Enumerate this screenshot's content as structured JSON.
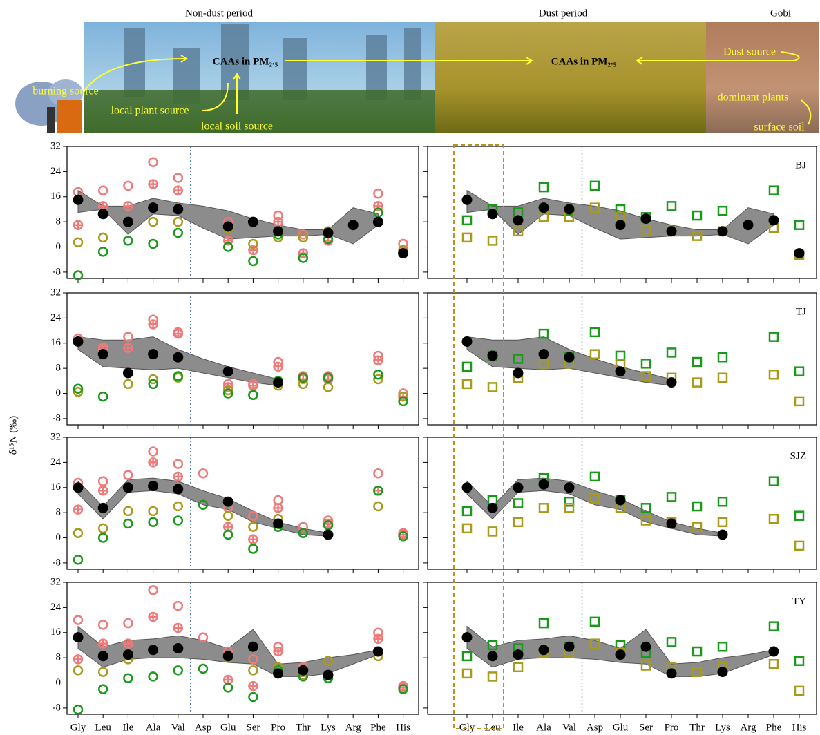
{
  "banner": {
    "left_title": "Non-dust period",
    "middle_title": "Dust period",
    "right_title": "Gobi",
    "caa_left": "CAAs in PM₂.₅",
    "caa_right": "CAAs in PM₂.₅",
    "burning": "burning source",
    "local_plant": "local plant source",
    "local_soil": "local soil source",
    "dust_source": "Dust source",
    "dominant_plants": "dominant plants",
    "surface_soil": "surface soil"
  },
  "chart_data": {
    "type": "scatter",
    "ylabel": "δ¹⁵N (‰)",
    "categories": [
      "Gly",
      "Leu",
      "Ile",
      "Ala",
      "Val",
      "Asp",
      "Glu",
      "Ser",
      "Pro",
      "Thr",
      "Lys",
      "Arg",
      "Phe",
      "His"
    ],
    "ylim": [
      -10,
      32
    ],
    "yticks": [
      -8,
      0,
      8,
      16,
      24,
      32
    ],
    "band_color": "#8c8c8c",
    "panels": [
      {
        "band": {
          "upper": [
            18,
            13,
            13,
            15.5,
            14,
            13,
            11.5,
            9,
            7,
            5.5,
            5.5,
            12.5,
            10.5,
            null
          ],
          "lower": [
            11,
            12,
            4,
            10.5,
            10,
            6,
            2.5,
            3,
            3.5,
            3.5,
            4,
            1,
            7,
            null
          ]
        },
        "series": [
          {
            "color": "#f07a7a",
            "marker": "circle-open",
            "values": [
              17.5,
              18,
              19.5,
              27,
              22,
              null,
              8,
              null,
              10,
              4,
              5,
              null,
              17,
              1
            ]
          },
          {
            "color": "#f07a7a",
            "marker": "circle-cross",
            "values": [
              7,
              13,
              13,
              20,
              18,
              null,
              2,
              -1,
              8,
              -2,
              2,
              null,
              13,
              -1
            ]
          },
          {
            "color": "#a89a1a",
            "marker": "circle-open",
            "values": [
              1.5,
              3,
              8,
              8,
              8,
              null,
              6,
              1,
              3,
              3,
              5,
              null,
              8,
              -1
            ]
          },
          {
            "color": "#1a9a1a",
            "marker": "circle-open",
            "values": [
              -9,
              -1.5,
              2,
              1,
              4.5,
              null,
              0,
              -4.5,
              4,
              -3.5,
              2.5,
              null,
              11,
              -2
            ]
          },
          {
            "color": "#000000",
            "marker": "circle",
            "values": [
              15,
              10.5,
              8,
              12.5,
              12,
              null,
              6.5,
              8,
              5,
              null,
              4.5,
              7,
              8,
              -2
            ]
          }
        ]
      },
      {
        "band": {
          "upper": [
            18,
            17,
            17,
            18,
            14,
            11,
            8.5,
            6.5,
            4.5,
            null,
            null,
            null,
            null,
            null
          ],
          "lower": [
            14,
            8.5,
            8,
            7.5,
            8,
            6.5,
            5,
            3.5,
            2.5,
            null,
            null,
            null,
            null,
            null
          ]
        },
        "series": [
          {
            "color": "#f07a7a",
            "marker": "circle-open",
            "values": [
              17.5,
              14.5,
              18,
              23.5,
              19.5,
              null,
              3,
              3,
              10,
              5.5,
              5.5,
              null,
              12,
              0
            ]
          },
          {
            "color": "#f07a7a",
            "marker": "circle-cross",
            "values": [
              16.5,
              14,
              14.5,
              22,
              19,
              null,
              2,
              2.5,
              8.5,
              4.5,
              4.5,
              null,
              10.5,
              -1
            ]
          },
          {
            "color": "#a89a1a",
            "marker": "circle-open",
            "values": [
              0.5,
              null,
              3,
              4.5,
              5,
              null,
              1,
              -0.5,
              2.5,
              3,
              2,
              null,
              4.5,
              -1
            ]
          },
          {
            "color": "#1a9a1a",
            "marker": "circle-open",
            "values": [
              1.5,
              -1,
              6.5,
              3,
              5.5,
              null,
              0,
              -0.5,
              4,
              5,
              5,
              null,
              6,
              -2.5
            ]
          },
          {
            "color": "#000000",
            "marker": "circle",
            "values": [
              16.5,
              12.5,
              6.5,
              12.5,
              11.5,
              null,
              7,
              null,
              3.5,
              null,
              null,
              null,
              null,
              null
            ]
          }
        ]
      },
      {
        "band": {
          "upper": [
            18,
            10,
            18.5,
            19,
            18,
            15,
            12.5,
            8.5,
            5,
            3,
            1.5,
            null,
            null,
            null
          ],
          "lower": [
            14,
            6,
            14.5,
            15,
            14,
            10.5,
            9,
            5,
            3,
            1,
            0.5,
            null,
            null,
            null
          ]
        },
        "series": [
          {
            "color": "#f07a7a",
            "marker": "circle-open",
            "values": [
              17.5,
              18,
              20,
              27.5,
              23.5,
              20.5,
              9.5,
              7,
              12,
              3.5,
              5.5,
              null,
              20.5,
              1.5
            ]
          },
          {
            "color": "#f07a7a",
            "marker": "circle-cross",
            "values": [
              9,
              15,
              16,
              24,
              19.5,
              null,
              3.5,
              -0.5,
              9.5,
              null,
              4.5,
              null,
              15,
              1
            ]
          },
          {
            "color": "#a89a1a",
            "marker": "circle-open",
            "values": [
              1.5,
              3,
              8.5,
              8.5,
              10,
              null,
              7,
              3.5,
              6,
              null,
              null,
              null,
              10,
              null
            ]
          },
          {
            "color": "#1a9a1a",
            "marker": "circle-open",
            "values": [
              -7,
              0,
              4.5,
              5,
              5.5,
              10.5,
              1,
              -3.5,
              3.5,
              1.5,
              4,
              null,
              15,
              0.5
            ]
          },
          {
            "color": "#000000",
            "marker": "circle",
            "values": [
              16,
              9.5,
              16,
              16.5,
              15.5,
              null,
              11.5,
              null,
              4.5,
              null,
              1,
              null,
              null,
              null
            ]
          }
        ]
      },
      {
        "band": {
          "upper": [
            18,
            11.5,
            13.5,
            14,
            15,
            13.5,
            11,
            17,
            6,
            6.5,
            8,
            9,
            10.5,
            null
          ],
          "lower": [
            11,
            5,
            7.5,
            8,
            8,
            7.5,
            6.5,
            6,
            2,
            2,
            3,
            6,
            9,
            null
          ]
        },
        "series": [
          {
            "color": "#f07a7a",
            "marker": "circle-open",
            "values": [
              20,
              18.5,
              19,
              29.5,
              24.5,
              14.5,
              10,
              7.5,
              11.5,
              5,
              7,
              null,
              16,
              -1
            ]
          },
          {
            "color": "#f07a7a",
            "marker": "circle-cross",
            "values": [
              7.5,
              12.5,
              12.5,
              21,
              17.5,
              null,
              1,
              -1,
              10,
              3.5,
              2.5,
              null,
              14,
              -1.5
            ]
          },
          {
            "color": "#a89a1a",
            "marker": "circle-open",
            "values": [
              4,
              3.5,
              7.5,
              10.5,
              11,
              null,
              8,
              4,
              5,
              2.5,
              7,
              null,
              8.5,
              null
            ]
          },
          {
            "color": "#1a9a1a",
            "marker": "circle-open",
            "values": [
              -8.5,
              -2,
              1.5,
              2,
              4,
              4.5,
              -1.5,
              -4.5,
              4,
              2,
              1.5,
              null,
              10,
              -2
            ]
          },
          {
            "color": "#000000",
            "marker": "circle",
            "values": [
              14.5,
              8.5,
              9,
              10.5,
              11,
              null,
              8.5,
              11.5,
              3,
              4,
              2.5,
              null,
              10,
              null
            ]
          }
        ]
      },
      {
        "label": "BJ",
        "band": {
          "upper": [
            18,
            13,
            13,
            15.5,
            14,
            13,
            11.5,
            9,
            7,
            5.5,
            5.5,
            12.5,
            10.5,
            null
          ],
          "lower": [
            11,
            12,
            4,
            10.5,
            10,
            6,
            2.5,
            3,
            3.5,
            3.5,
            4,
            1,
            7,
            null
          ]
        },
        "series": [
          {
            "color": "#1a9a1a",
            "marker": "square-open",
            "values": [
              8.5,
              12,
              11,
              19,
              11.5,
              19.5,
              12,
              9.5,
              13,
              10,
              11.5,
              null,
              18,
              7
            ]
          },
          {
            "color": "#a89a1a",
            "marker": "square-open",
            "values": [
              3,
              2,
              5,
              9.5,
              9.5,
              12.5,
              9.5,
              5.5,
              5,
              3.5,
              5,
              null,
              6,
              -2.5
            ]
          },
          {
            "color": "#000000",
            "marker": "circle",
            "values": [
              15,
              10.5,
              8.5,
              12.5,
              12,
              null,
              7,
              9,
              5,
              null,
              5,
              7,
              8.5,
              -2
            ]
          }
        ]
      },
      {
        "label": "TJ",
        "band": {
          "upper": [
            18,
            17,
            17,
            18,
            14,
            11,
            8.5,
            6.5,
            4.5,
            null,
            null,
            null,
            null,
            null
          ],
          "lower": [
            14,
            8.5,
            8,
            7.5,
            8,
            6.5,
            5,
            3.5,
            2.5,
            null,
            null,
            null,
            null,
            null
          ]
        },
        "series": [
          {
            "color": "#1a9a1a",
            "marker": "square-open",
            "values": [
              8.5,
              12,
              11,
              19,
              11.5,
              19.5,
              12,
              9.5,
              13,
              10,
              11.5,
              null,
              18,
              7
            ]
          },
          {
            "color": "#a89a1a",
            "marker": "square-open",
            "values": [
              3,
              2,
              5,
              9.5,
              9.5,
              12.5,
              9.5,
              5.5,
              5,
              3.5,
              5,
              null,
              6,
              -2.5
            ]
          },
          {
            "color": "#000000",
            "marker": "circle",
            "values": [
              16.5,
              12,
              6.5,
              12.5,
              11.5,
              null,
              7,
              null,
              3.5,
              null,
              null,
              null,
              null,
              null
            ]
          }
        ]
      },
      {
        "label": "SJZ",
        "band": {
          "upper": [
            18,
            10,
            18.5,
            19,
            18,
            15,
            12.5,
            8.5,
            5,
            3,
            1.5,
            null,
            null,
            null
          ],
          "lower": [
            14,
            6,
            14.5,
            15,
            14,
            10.5,
            9,
            5,
            3,
            1,
            0.5,
            null,
            null,
            null
          ]
        },
        "series": [
          {
            "color": "#1a9a1a",
            "marker": "square-open",
            "values": [
              8.5,
              12,
              11,
              19,
              11.5,
              19.5,
              12,
              9.5,
              13,
              10,
              11.5,
              null,
              18,
              7
            ]
          },
          {
            "color": "#a89a1a",
            "marker": "square-open",
            "values": [
              3,
              2,
              5,
              9.5,
              9.5,
              12.5,
              9.5,
              5.5,
              5,
              3.5,
              5,
              null,
              6,
              -2.5
            ]
          },
          {
            "color": "#000000",
            "marker": "circle",
            "values": [
              16,
              9.5,
              16,
              17,
              16,
              null,
              12,
              null,
              4.5,
              null,
              1,
              null,
              null,
              null
            ]
          }
        ]
      },
      {
        "label": "TY",
        "band": {
          "upper": [
            18,
            11.5,
            13.5,
            14,
            15,
            13.5,
            11,
            17,
            6,
            6.5,
            8,
            9,
            10.5,
            null
          ],
          "lower": [
            11,
            5,
            7.5,
            8,
            8,
            7.5,
            6.5,
            6,
            2,
            2,
            3,
            6,
            9,
            null
          ]
        },
        "series": [
          {
            "color": "#1a9a1a",
            "marker": "square-open",
            "values": [
              8.5,
              12,
              11,
              19,
              11.5,
              19.5,
              12,
              9.5,
              13,
              10,
              11.5,
              null,
              18,
              7
            ]
          },
          {
            "color": "#a89a1a",
            "marker": "square-open",
            "values": [
              3,
              2,
              5,
              9.5,
              9.5,
              12.5,
              9.5,
              5.5,
              5,
              3.5,
              5,
              null,
              6,
              -2.5
            ]
          },
          {
            "color": "#000000",
            "marker": "circle",
            "values": [
              14.5,
              8.5,
              9,
              10.5,
              11.5,
              null,
              9,
              11.5,
              3,
              null,
              3.5,
              null,
              10,
              null
            ]
          }
        ]
      }
    ]
  }
}
